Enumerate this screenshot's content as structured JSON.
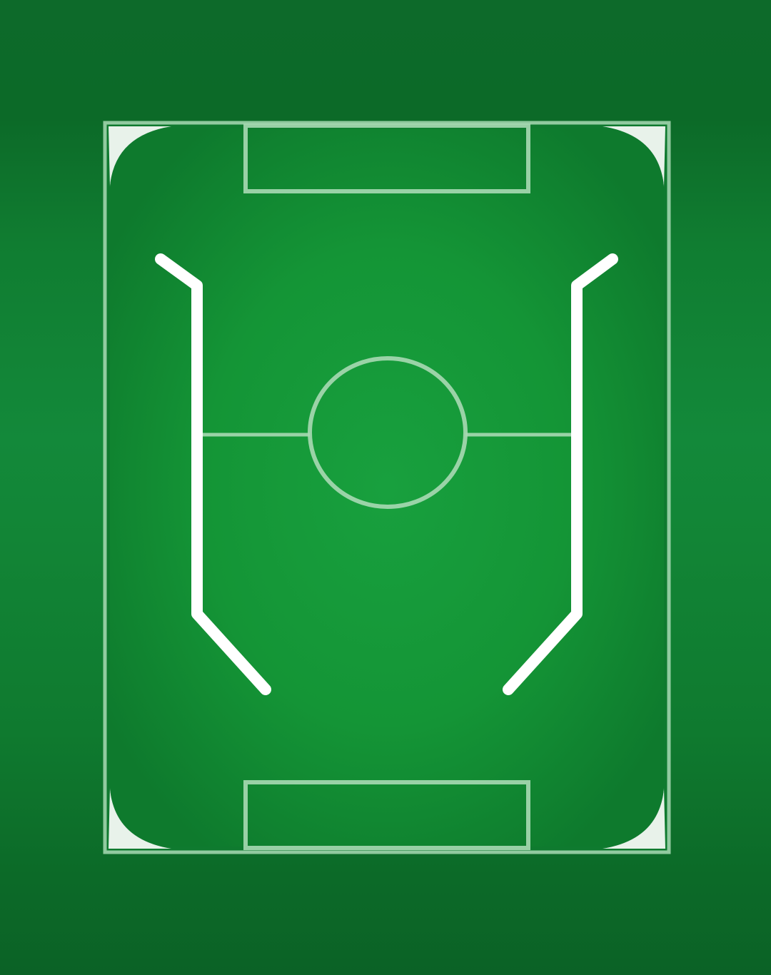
{
  "screen": {
    "type": "table-football pitch",
    "text_labels": []
  },
  "colors": {
    "background_dark": "#0c6627",
    "background_band": "#107a30",
    "pitch_center": "#169c3c",
    "pitch_edge": "#0f7a2f",
    "marking": "#a9d9b4",
    "rail": "#ffffff",
    "corner_fill": "#e8f2ea"
  },
  "pitch": {
    "goal_areas": [
      "top",
      "bottom"
    ],
    "center_circle": true,
    "halfway_line": true,
    "corner_fills": [
      "top-left",
      "top-right",
      "bottom-left",
      "bottom-right"
    ]
  },
  "rails": [
    "left-bumper-rail",
    "right-bumper-rail"
  ]
}
